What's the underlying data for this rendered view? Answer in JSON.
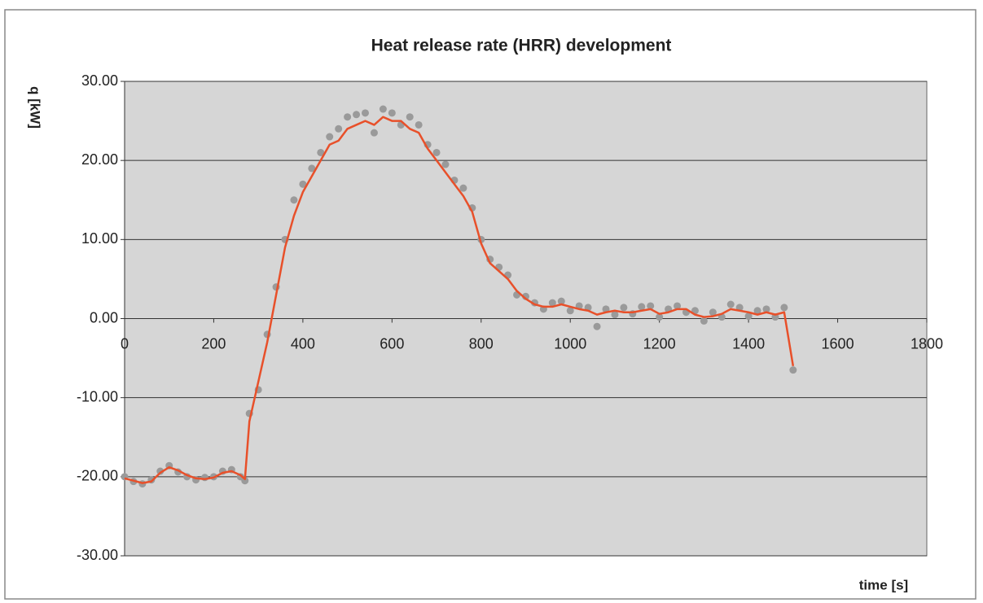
{
  "chart_data": {
    "type": "line",
    "title": "Heat release rate (HRR) development",
    "y_label": "q [kW]",
    "x_label": "time [s]",
    "xlim": [
      0,
      1800
    ],
    "xticks": [
      0,
      200,
      400,
      600,
      800,
      1000,
      1200,
      1400,
      1600,
      1800
    ],
    "ylim": [
      -30,
      30
    ],
    "yticks": [
      {
        "value": -30,
        "label": "-30.00"
      },
      {
        "value": -20,
        "label": "-20.00"
      },
      {
        "value": -10,
        "label": "-10.00"
      },
      {
        "value": 0,
        "label": "0.00"
      },
      {
        "value": 10,
        "label": "10.00"
      },
      {
        "value": 20,
        "label": "20.00"
      },
      {
        "value": 30,
        "label": "30.00"
      }
    ],
    "grid": true,
    "x": [
      0,
      20,
      40,
      60,
      80,
      100,
      120,
      140,
      160,
      180,
      200,
      220,
      240,
      260,
      270,
      280,
      300,
      320,
      340,
      360,
      380,
      400,
      420,
      440,
      460,
      480,
      500,
      520,
      540,
      560,
      580,
      600,
      620,
      640,
      660,
      680,
      700,
      720,
      740,
      760,
      780,
      800,
      820,
      840,
      860,
      880,
      900,
      920,
      940,
      960,
      980,
      1000,
      1020,
      1040,
      1060,
      1080,
      1100,
      1120,
      1140,
      1160,
      1180,
      1200,
      1220,
      1240,
      1260,
      1280,
      1300,
      1320,
      1340,
      1360,
      1380,
      1400,
      1420,
      1440,
      1460,
      1480,
      1500
    ],
    "series": [
      {
        "type": "scatter",
        "color": "#9a9a9a",
        "values": [
          -20,
          -20.6,
          -20.9,
          -20.4,
          -19.3,
          -18.6,
          -19.4,
          -20,
          -20.4,
          -20.1,
          -20,
          -19.3,
          -19.1,
          -20,
          -20.5,
          -12,
          -9,
          -2,
          4,
          10,
          15,
          17,
          19,
          21,
          23,
          24,
          25.5,
          25.8,
          26,
          23.5,
          26.5,
          26,
          24.5,
          25.5,
          24.5,
          22,
          21,
          19.5,
          17.5,
          16.5,
          14,
          10,
          7.5,
          6.5,
          5.5,
          3,
          2.8,
          2,
          1.2,
          2,
          2.2,
          1,
          1.6,
          1.4,
          -1,
          1.2,
          0.5,
          1.4,
          0.6,
          1.5,
          1.6,
          0.2,
          1.2,
          1.6,
          0.8,
          1,
          -0.3,
          0.8,
          0.2,
          1.8,
          1.4,
          0.3,
          1,
          1.2,
          0.2,
          1.4,
          -6.5
        ]
      },
      {
        "type": "line",
        "color": "#e8502a",
        "values": [
          -20.2,
          -20.5,
          -20.8,
          -20.6,
          -19.5,
          -18.8,
          -19.2,
          -19.8,
          -20.2,
          -20.3,
          -20.1,
          -19.5,
          -19.3,
          -19.8,
          -20.3,
          -13,
          -8,
          -3,
          3,
          9,
          13,
          16,
          18,
          20,
          22,
          22.5,
          24,
          24.5,
          25,
          24.5,
          25.5,
          25,
          25,
          24,
          23.5,
          21.5,
          20,
          18.5,
          17,
          15.5,
          13.5,
          9.5,
          7,
          6,
          5,
          3.5,
          2.5,
          1.8,
          1.5,
          1.5,
          1.8,
          1.5,
          1.2,
          1,
          0.5,
          0.8,
          1.0,
          0.8,
          0.8,
          1.0,
          1.2,
          0.6,
          0.8,
          1.2,
          1.2,
          0.5,
          0.2,
          0.3,
          0.6,
          1.2,
          1.0,
          0.8,
          0.5,
          0.8,
          0.5,
          0.8,
          -6
        ]
      }
    ]
  }
}
